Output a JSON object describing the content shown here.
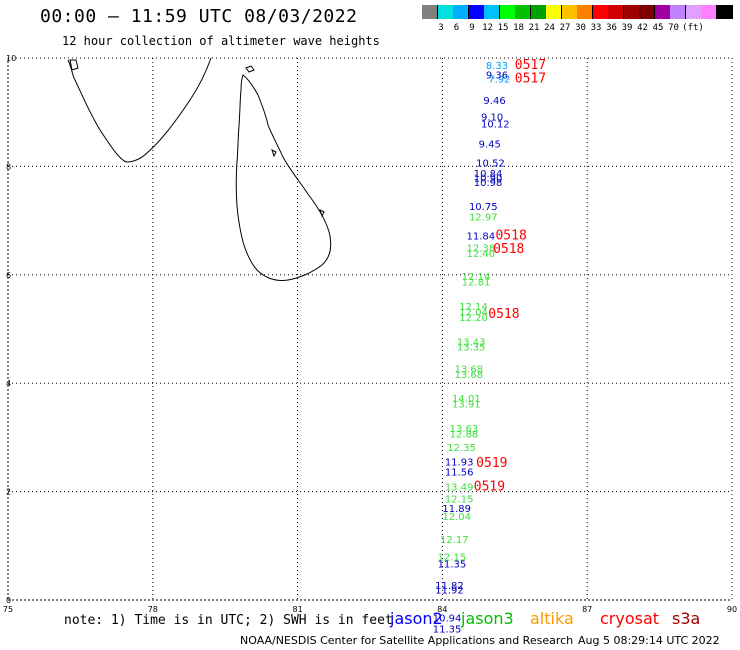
{
  "header": {
    "title": "00:00 – 11:59 UTC 08/03/2022",
    "subtitle": "12 hour collection of altimeter wave heights"
  },
  "color_scale": {
    "unit": "(ft)",
    "swatches": [
      "#808080",
      "#00e0e0",
      "#00b0ff",
      "#0000ff",
      "#00c0ff",
      "#00ff00",
      "#00c000",
      "#00a000",
      "#ffff00",
      "#ffc000",
      "#ff8000",
      "#ff0000",
      "#d00000",
      "#a00000",
      "#800000",
      "#a000a0",
      "#c080ff",
      "#e0a0ff",
      "#ff80ff",
      "#000000"
    ],
    "labels": [
      "3",
      "6",
      "9",
      "12",
      "15",
      "18",
      "21",
      "24",
      "27",
      "30",
      "33",
      "36",
      "39",
      "42",
      "45",
      "70"
    ]
  },
  "chart_data": {
    "type": "map",
    "x_ticks": [
      "75",
      "78",
      "81",
      "84",
      "87",
      "90"
    ],
    "y_ticks": [
      "0",
      "2",
      "4",
      "6",
      "8",
      "10"
    ],
    "xlim": [
      75,
      90
    ],
    "ylim": [
      0,
      10
    ],
    "grid": "dotted",
    "observations": [
      {
        "v": "8.33",
        "sat": "altika",
        "color": "#00a0ff",
        "lon": 84.9,
        "lat": 9.8
      },
      {
        "v": "9.36",
        "sat": "jason2",
        "color": "#0000c0",
        "lon": 84.9,
        "lat": 9.62
      },
      {
        "v": "7.92",
        "sat": "altika",
        "color": "#00a0ff",
        "lon": 84.95,
        "lat": 9.55
      },
      {
        "v": "9.46",
        "sat": "jason2",
        "color": "#0000c0",
        "lon": 84.85,
        "lat": 9.15
      },
      {
        "v": "9.10",
        "sat": "jason2",
        "color": "#0000c0",
        "lon": 84.8,
        "lat": 8.85
      },
      {
        "v": "10.12",
        "sat": "jason2",
        "color": "#0000c0",
        "lon": 84.8,
        "lat": 8.72
      },
      {
        "v": "9.45",
        "sat": "jason2",
        "color": "#0000c0",
        "lon": 84.75,
        "lat": 8.35
      },
      {
        "v": "10.52",
        "sat": "jason2",
        "color": "#0000c0",
        "lon": 84.7,
        "lat": 8.0
      },
      {
        "v": "10.84",
        "sat": "jason2",
        "color": "#0000c0",
        "lon": 84.65,
        "lat": 7.8
      },
      {
        "v": "10.90",
        "sat": "jason2",
        "color": "#0000c0",
        "lon": 84.65,
        "lat": 7.72
      },
      {
        "v": "10.98",
        "sat": "jason2",
        "color": "#0000c0",
        "lon": 84.65,
        "lat": 7.64
      },
      {
        "v": "10.75",
        "sat": "jason2",
        "color": "#0000c0",
        "lon": 84.55,
        "lat": 7.2
      },
      {
        "v": "12.97",
        "sat": "jason3",
        "color": "#40e040",
        "lon": 84.55,
        "lat": 7.0
      },
      {
        "v": "11.84",
        "sat": "jason2",
        "color": "#0000c0",
        "lon": 84.5,
        "lat": 6.65
      },
      {
        "v": "12.38",
        "sat": "jason3",
        "color": "#40e040",
        "lon": 84.5,
        "lat": 6.43
      },
      {
        "v": "12.40",
        "sat": "jason3",
        "color": "#40e040",
        "lon": 84.5,
        "lat": 6.33
      },
      {
        "v": "12.14",
        "sat": "jason3",
        "color": "#40e040",
        "lon": 84.4,
        "lat": 5.9
      },
      {
        "v": "12.81",
        "sat": "jason3",
        "color": "#40e040",
        "lon": 84.4,
        "lat": 5.8
      },
      {
        "v": "12.14",
        "sat": "jason3",
        "color": "#40e040",
        "lon": 84.35,
        "lat": 5.35
      },
      {
        "v": "12.04",
        "sat": "jason3",
        "color": "#40e040",
        "lon": 84.35,
        "lat": 5.25
      },
      {
        "v": "12.20",
        "sat": "jason3",
        "color": "#40e040",
        "lon": 84.35,
        "lat": 5.15
      },
      {
        "v": "13.43",
        "sat": "jason3",
        "color": "#40e040",
        "lon": 84.3,
        "lat": 4.7
      },
      {
        "v": "13.35",
        "sat": "jason3",
        "color": "#40e040",
        "lon": 84.3,
        "lat": 4.6
      },
      {
        "v": "13.68",
        "sat": "jason3",
        "color": "#40e040",
        "lon": 84.25,
        "lat": 4.2
      },
      {
        "v": "13.68",
        "sat": "jason3",
        "color": "#40e040",
        "lon": 84.25,
        "lat": 4.1
      },
      {
        "v": "14.01",
        "sat": "jason3",
        "color": "#40e040",
        "lon": 84.2,
        "lat": 3.65
      },
      {
        "v": "13.91",
        "sat": "jason3",
        "color": "#40e040",
        "lon": 84.2,
        "lat": 3.55
      },
      {
        "v": "13.63",
        "sat": "jason3",
        "color": "#40e040",
        "lon": 84.15,
        "lat": 3.1
      },
      {
        "v": "12.88",
        "sat": "jason3",
        "color": "#40e040",
        "lon": 84.15,
        "lat": 3.0
      },
      {
        "v": "12.35",
        "sat": "jason3",
        "color": "#40e040",
        "lon": 84.1,
        "lat": 2.75
      },
      {
        "v": "11.93",
        "sat": "jason2",
        "color": "#0000c0",
        "lon": 84.05,
        "lat": 2.48
      },
      {
        "v": "11.56",
        "sat": "jason2",
        "color": "#0000c0",
        "lon": 84.05,
        "lat": 2.3
      },
      {
        "v": "13.49",
        "sat": "jason3",
        "color": "#40e040",
        "lon": 84.05,
        "lat": 2.02
      },
      {
        "v": "12.15",
        "sat": "jason3",
        "color": "#40e040",
        "lon": 84.05,
        "lat": 1.8
      },
      {
        "v": "11.89",
        "sat": "jason2",
        "color": "#0000c0",
        "lon": 84.0,
        "lat": 1.62
      },
      {
        "v": "12.04",
        "sat": "jason3",
        "color": "#40e040",
        "lon": 84.0,
        "lat": 1.48
      },
      {
        "v": "12.17",
        "sat": "jason3",
        "color": "#40e040",
        "lon": 83.95,
        "lat": 1.05
      },
      {
        "v": "12.15",
        "sat": "jason3",
        "color": "#40e040",
        "lon": 83.9,
        "lat": 0.73
      },
      {
        "v": "11.35",
        "sat": "jason2",
        "color": "#0000c0",
        "lon": 83.9,
        "lat": 0.6
      },
      {
        "v": "11.82",
        "sat": "jason2",
        "color": "#0000c0",
        "lon": 83.85,
        "lat": 0.2
      },
      {
        "v": "11.92",
        "sat": "jason2",
        "color": "#0000c0",
        "lon": 83.85,
        "lat": 0.12
      },
      {
        "v": "10.94",
        "sat": "jason2",
        "color": "#0000c0",
        "lon": 83.8,
        "lat": -0.4
      },
      {
        "v": "11.35",
        "sat": "jason2",
        "color": "#0000c0",
        "lon": 83.8,
        "lat": -0.6
      }
    ],
    "time_labels": [
      {
        "t": "0517",
        "lon": 85.5,
        "lat": 9.8
      },
      {
        "t": "0517",
        "lon": 85.5,
        "lat": 9.55
      },
      {
        "t": "0518",
        "lon": 85.1,
        "lat": 6.65
      },
      {
        "t": "0518",
        "lon": 85.05,
        "lat": 6.4
      },
      {
        "t": "0518",
        "lon": 84.95,
        "lat": 5.2
      },
      {
        "t": "0519",
        "lon": 84.7,
        "lat": 2.45
      },
      {
        "t": "0519",
        "lon": 84.65,
        "lat": 2.02
      }
    ]
  },
  "footer": {
    "note": "note: 1) Time is in UTC; 2) SWH is in feet",
    "satellites": [
      {
        "name": "jason2",
        "color": "#0000ff"
      },
      {
        "name": "jason3",
        "color": "#00c000"
      },
      {
        "name": "altika",
        "color": "#ff9900"
      },
      {
        "name": "cryosat",
        "color": "#ff0000"
      },
      {
        "name": "s3a",
        "color": "#a00000"
      }
    ],
    "credit": "NOAA/NESDIS Center for Satellite Applications and Research",
    "timestamp": "Aug  5 08:29:14 UTC 2022"
  }
}
